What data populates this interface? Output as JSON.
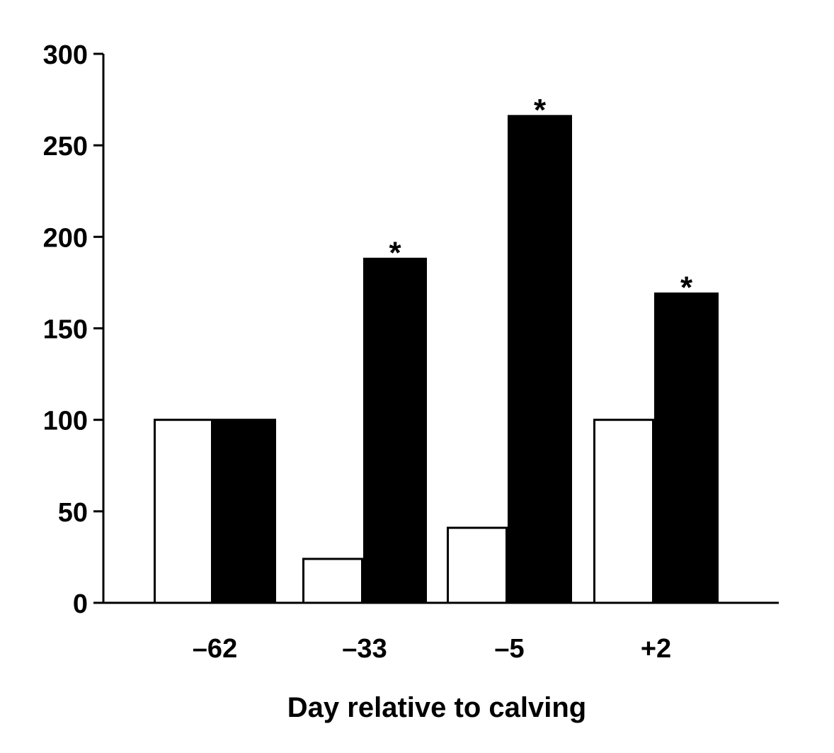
{
  "chart_data": {
    "type": "bar",
    "title": "",
    "xlabel": "Day relative to calving",
    "ylabel": "",
    "ylim": [
      0,
      300
    ],
    "yticks": [
      0,
      50,
      100,
      150,
      200,
      250,
      300
    ],
    "categories": [
      "–62",
      "–33",
      "–5",
      "+2"
    ],
    "series": [
      {
        "values": [
          100,
          24,
          41,
          100
        ],
        "color": "#ffffff"
      },
      {
        "values": [
          100,
          188,
          266,
          169
        ],
        "color": "#000000"
      }
    ],
    "annotations": [
      "",
      "*",
      "*",
      "*"
    ],
    "grid": false,
    "legend": "none"
  }
}
